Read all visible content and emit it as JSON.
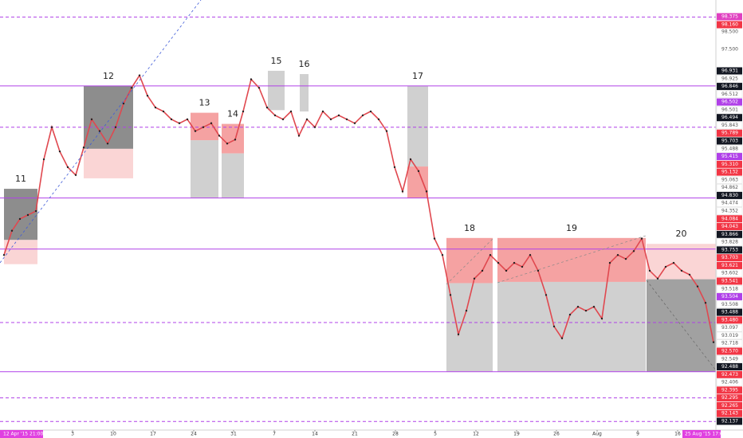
{
  "chart_data": {
    "type": "line",
    "color": "#e0484f",
    "xlim": [
      -0.5,
      89.3
    ],
    "ylim": [
      91.6,
      98.16
    ],
    "values": [
      94.27,
      94.64,
      94.82,
      94.88,
      94.94,
      95.73,
      96.22,
      95.85,
      95.61,
      95.49,
      95.91,
      96.34,
      96.16,
      95.97,
      96.22,
      96.58,
      96.82,
      97.01,
      96.7,
      96.52,
      96.46,
      96.34,
      96.28,
      96.34,
      96.16,
      96.22,
      96.28,
      96.09,
      95.97,
      96.03,
      96.46,
      96.95,
      96.82,
      96.52,
      96.4,
      96.34,
      96.46,
      96.09,
      96.34,
      96.22,
      96.46,
      96.34,
      96.4,
      96.34,
      96.28,
      96.4,
      96.46,
      96.34,
      96.16,
      95.61,
      95.24,
      95.73,
      95.55,
      95.24,
      94.52,
      94.27,
      93.66,
      93.06,
      93.42,
      93.91,
      94.03,
      94.27,
      94.15,
      94.03,
      94.15,
      94.09,
      94.27,
      94.03,
      93.66,
      93.18,
      93.0,
      93.36,
      93.48,
      93.42,
      93.48,
      93.3,
      94.15,
      94.27,
      94.21,
      94.33,
      94.52,
      94.03,
      93.91,
      94.09,
      94.15,
      94.03,
      93.97,
      93.79,
      93.54,
      92.94
    ],
    "xticks": [
      {
        "value": 8.6,
        "label": "3"
      },
      {
        "value": 13.7,
        "label": "10"
      },
      {
        "value": 18.7,
        "label": "17"
      },
      {
        "value": 23.8,
        "label": "24"
      },
      {
        "value": 28.8,
        "label": "31"
      },
      {
        "value": 33.9,
        "label": "7"
      },
      {
        "value": 39,
        "label": "14"
      },
      {
        "value": 44,
        "label": "21"
      },
      {
        "value": 49.1,
        "label": "28"
      },
      {
        "value": 54.1,
        "label": "5"
      },
      {
        "value": 59.2,
        "label": "12"
      },
      {
        "value": 64.3,
        "label": "19"
      },
      {
        "value": 69.3,
        "label": "26"
      },
      {
        "value": 74.4,
        "label": "Aug"
      },
      {
        "value": 79.5,
        "label": "9"
      },
      {
        "value": 84.5,
        "label": "16"
      }
    ],
    "range_start": "12 Apr '15   21:00",
    "range_end": "25 Aug '15   17:00",
    "levels": [
      {
        "value": 97.9,
        "style": "dashed"
      },
      {
        "value": 96.85,
        "style": "solid"
      },
      {
        "value": 96.22,
        "style": "dashed"
      },
      {
        "value": 95.14,
        "style": "solid"
      },
      {
        "value": 94.36,
        "style": "solid"
      },
      {
        "value": 93.24,
        "style": "dashed"
      },
      {
        "value": 92.49,
        "style": "solid"
      },
      {
        "value": 92.09,
        "style": "dashed"
      },
      {
        "value": 91.73,
        "style": "dashed"
      }
    ],
    "level_color": "#b040e8",
    "boxes": [
      {
        "label": "11",
        "x0": 0,
        "x1": 4.2,
        "parts": [
          {
            "top": 95.28,
            "bottom": 94.5,
            "color": "#707070"
          },
          {
            "top": 94.5,
            "bottom": 94.13,
            "color": "#f9caca"
          }
        ]
      },
      {
        "label": "12",
        "x0": 10,
        "x1": 16.2,
        "parts": [
          {
            "top": 96.85,
            "bottom": 95.89,
            "color": "#707070"
          },
          {
            "top": 95.89,
            "bottom": 95.44,
            "color": "#f9caca"
          }
        ]
      },
      {
        "label": "13",
        "x0": 23.4,
        "x1": 26.9,
        "parts": [
          {
            "top": 96.44,
            "bottom": 96.02,
            "color": "#f28b8b"
          },
          {
            "top": 96.02,
            "bottom": 95.14,
            "color": "#c4c4c4"
          }
        ]
      },
      {
        "label": "14",
        "x0": 27.3,
        "x1": 30.1,
        "parts": [
          {
            "top": 96.27,
            "bottom": 95.82,
            "color": "#f28b8b"
          },
          {
            "top": 95.82,
            "bottom": 95.14,
            "color": "#c4c4c4"
          }
        ]
      },
      {
        "label": "15",
        "x0": 33.1,
        "x1": 35.2,
        "parts": [
          {
            "top": 97.08,
            "bottom": 96.48,
            "color": "#c4c4c4"
          }
        ]
      },
      {
        "label": "16",
        "x0": 37.1,
        "x1": 38.2,
        "parts": [
          {
            "top": 97.03,
            "bottom": 96.46,
            "color": "#c4c4c4"
          }
        ]
      },
      {
        "label": "17",
        "x0": 50.6,
        "x1": 53.2,
        "parts": [
          {
            "top": 96.85,
            "bottom": 95.62,
            "color": "#c4c4c4"
          },
          {
            "top": 95.62,
            "bottom": 95.14,
            "color": "#f28b8b"
          }
        ]
      },
      {
        "label": "18",
        "x0": 55.5,
        "x1": 61.3,
        "parts": [
          {
            "top": 94.53,
            "bottom": 93.84,
            "color": "#f28b8b"
          },
          {
            "top": 93.84,
            "bottom": 92.49,
            "color": "#c4c4c4"
          }
        ]
      },
      {
        "label": "19",
        "x0": 61.9,
        "x1": 80.5,
        "parts": [
          {
            "top": 94.53,
            "bottom": 93.86,
            "color": "#f28b8b"
          },
          {
            "top": 93.86,
            "bottom": 92.49,
            "color": "#c4c4c4"
          }
        ]
      },
      {
        "label": "20",
        "x0": 80.6,
        "x1": 89.3,
        "parts": [
          {
            "top": 94.44,
            "bottom": 93.9,
            "color": "#f9caca"
          },
          {
            "top": 93.9,
            "bottom": 92.49,
            "color": "#8a8a8a"
          }
        ]
      }
    ],
    "price_labels": [
      {
        "label": "98.375",
        "bg": "#e040c0"
      },
      {
        "label": "98.160",
        "bg": "#f23645"
      },
      {
        "label": "98.500",
        "bg": "none"
      },
      {
        "label": "97.500",
        "bg": "none"
      },
      {
        "label": "96.931",
        "bg": "#131722"
      },
      {
        "label": "96.925",
        "bg": "#ffffff"
      },
      {
        "label": "96.846",
        "bg": "#131722"
      },
      {
        "label": "96.512",
        "bg": "#ffffff"
      },
      {
        "label": "96.502",
        "bg": "#b040e8"
      },
      {
        "label": "96.501",
        "bg": "#ffffff"
      },
      {
        "label": "96.494",
        "bg": "#131722"
      },
      {
        "label": "95.843",
        "bg": "#ffffff"
      },
      {
        "label": "95.789",
        "bg": "#f23645"
      },
      {
        "label": "95.703",
        "bg": "#131722"
      },
      {
        "label": "95.488",
        "bg": "#ffffff"
      },
      {
        "label": "95.415",
        "bg": "#b040e8"
      },
      {
        "label": "95.310",
        "bg": "#f23645"
      },
      {
        "label": "95.132",
        "bg": "#f23645"
      },
      {
        "label": "95.063",
        "bg": "#ffffff"
      },
      {
        "label": "94.862",
        "bg": "#ffffff"
      },
      {
        "label": "94.830",
        "bg": "#131722"
      },
      {
        "label": "94.474",
        "bg": "#ffffff"
      },
      {
        "label": "94.352",
        "bg": "#ffffff"
      },
      {
        "label": "94.084",
        "bg": "#f23645"
      },
      {
        "label": "94.043",
        "bg": "#f23645"
      },
      {
        "label": "93.866",
        "bg": "#131722"
      },
      {
        "label": "93.828",
        "bg": "#ffffff"
      },
      {
        "label": "93.753",
        "bg": "#131722"
      },
      {
        "label": "93.703",
        "bg": "#f23645"
      },
      {
        "label": "93.621",
        "bg": "#f23645"
      },
      {
        "label": "93.602",
        "bg": "#ffffff"
      },
      {
        "label": "93.541",
        "bg": "#f23645"
      },
      {
        "label": "93.518",
        "bg": "#ffffff"
      },
      {
        "label": "93.504",
        "bg": "#b040e8"
      },
      {
        "label": "93.508",
        "bg": "#ffffff"
      },
      {
        "label": "93.488",
        "bg": "#131722"
      },
      {
        "label": "93.480",
        "bg": "#f23645"
      },
      {
        "label": "93.097",
        "bg": "#ffffff"
      },
      {
        "label": "93.019",
        "bg": "#ffffff"
      },
      {
        "label": "92.718",
        "bg": "#ffffff"
      },
      {
        "label": "92.570",
        "bg": "#f23645"
      },
      {
        "label": "92.549",
        "bg": "#ffffff"
      },
      {
        "label": "92.488",
        "bg": "#131722"
      },
      {
        "label": "92.473",
        "bg": "#f23645"
      },
      {
        "label": "92.406",
        "bg": "#ffffff"
      },
      {
        "label": "92.395",
        "bg": "#f23645"
      },
      {
        "label": "92.295",
        "bg": "#f23645"
      },
      {
        "label": "92.265",
        "bg": "#f23645"
      },
      {
        "label": "92.143",
        "bg": "#f23645"
      },
      {
        "label": "92.137",
        "bg": "#131722"
      }
    ]
  }
}
